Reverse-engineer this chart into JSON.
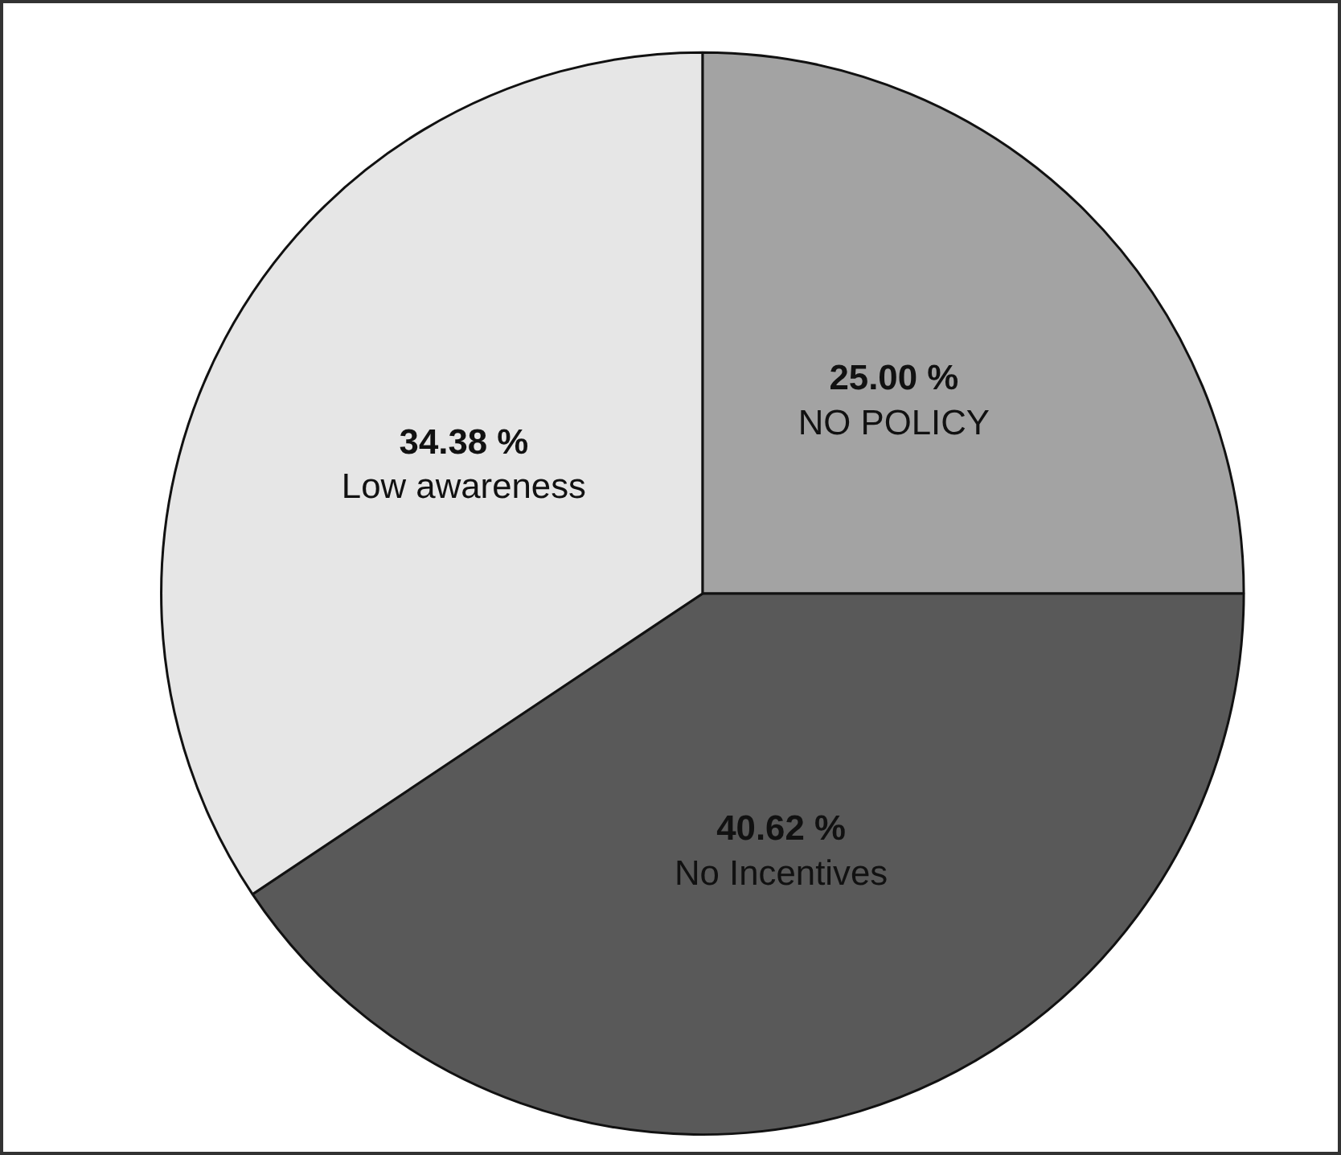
{
  "chart_data": {
    "type": "pie",
    "categories": [
      "NO POLICY",
      "No Incentives",
      "Low awareness"
    ],
    "values": [
      25.0,
      40.62,
      34.38
    ],
    "colors": [
      "#a3a3a3",
      "#595959",
      "#e6e6e6"
    ],
    "value_labels": [
      "25.00 %",
      "40.62 %",
      "34.38 %"
    ],
    "legend": false
  }
}
